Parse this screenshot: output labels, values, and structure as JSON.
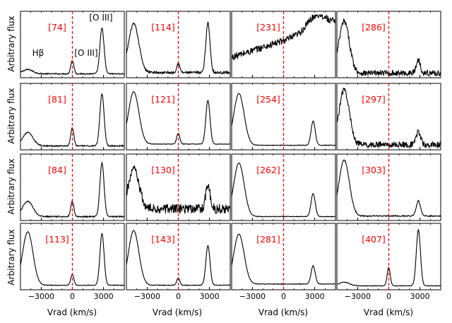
{
  "figure": {
    "ylabel": "Arbitrary flux",
    "xlabel": "Vrad (km/s)",
    "xtick_labels": [
      "−3000",
      "0",
      "3000"
    ],
    "marker_color": "#ff0000",
    "line_color": "#000000"
  },
  "annotations": {
    "hbeta": "Hβ",
    "oiii_weak": "[O III]",
    "oiii_strong": "[O III]"
  },
  "chart_data": {
    "type": "line",
    "x_unit": "Vrad (km/s)",
    "xlim": [
      -5000,
      5000
    ],
    "xticks": [
      -3000,
      0,
      3000
    ],
    "reference_line": {
      "x": 0,
      "style": "dashed",
      "color": "#ff0000"
    },
    "panels": [
      {
        "id": "[74]",
        "row": 0,
        "col": 0,
        "hb": 0.07,
        "o1": 0.22,
        "o2": 0.75,
        "noise": 0.01,
        "base": 0.03
      },
      {
        "id": "[114]",
        "row": 0,
        "col": 1,
        "hb": 0.8,
        "o1": 0.15,
        "o2": 0.82,
        "noise": 0.02,
        "base": 0.05
      },
      {
        "id": "[231]",
        "row": 0,
        "col": 2,
        "hb": 0.0,
        "o1": 0.0,
        "o2": 0.0,
        "noise": 0.06,
        "base": 0.05,
        "rising": true
      },
      {
        "id": "[286]",
        "row": 0,
        "col": 3,
        "hb": 0.85,
        "o1": 0.0,
        "o2": 0.22,
        "noise": 0.05,
        "base": 0.04
      },
      {
        "id": "[81]",
        "row": 1,
        "col": 0,
        "hb": 0.22,
        "o1": 0.3,
        "o2": 0.86,
        "noise": 0.01,
        "base": 0.03
      },
      {
        "id": "[121]",
        "row": 1,
        "col": 1,
        "hb": 0.86,
        "o1": 0.18,
        "o2": 0.72,
        "noise": 0.005,
        "base": 0.06
      },
      {
        "id": "[254]",
        "row": 1,
        "col": 2,
        "hb": 0.85,
        "o1": 0.0,
        "o2": 0.4,
        "noise": 0.005,
        "base": 0.04
      },
      {
        "id": "[297]",
        "row": 1,
        "col": 3,
        "hb": 0.9,
        "o1": 0.0,
        "o2": 0.22,
        "noise": 0.05,
        "base": 0.05
      },
      {
        "id": "[84]",
        "row": 2,
        "col": 0,
        "hb": 0.25,
        "o1": 0.25,
        "o2": 0.88,
        "noise": 0.01,
        "base": 0.03
      },
      {
        "id": "[130]",
        "row": 2,
        "col": 1,
        "hb": 0.65,
        "o1": 0.0,
        "o2": 0.42,
        "noise": 0.08,
        "base": 0.16
      },
      {
        "id": "[262]",
        "row": 2,
        "col": 2,
        "hb": 0.88,
        "o1": 0.0,
        "o2": 0.38,
        "noise": 0.005,
        "base": 0.03
      },
      {
        "id": "[303]",
        "row": 2,
        "col": 3,
        "hb": 0.92,
        "o1": 0.0,
        "o2": 0.25,
        "noise": 0.01,
        "base": 0.04
      },
      {
        "id": "[113]",
        "row": 3,
        "col": 0,
        "hb": 0.88,
        "o1": 0.18,
        "o2": 0.85,
        "noise": 0.005,
        "base": 0.04
      },
      {
        "id": "[143]",
        "row": 3,
        "col": 1,
        "hb": 0.9,
        "o1": 0.12,
        "o2": 0.65,
        "noise": 0.005,
        "base": 0.04
      },
      {
        "id": "[281]",
        "row": 3,
        "col": 2,
        "hb": 0.82,
        "o1": 0.0,
        "o2": 0.3,
        "noise": 0.005,
        "base": 0.06
      },
      {
        "id": "[407]",
        "row": 3,
        "col": 3,
        "hb": 0.06,
        "o1": 0.3,
        "o2": 0.92,
        "noise": 0.005,
        "base": 0.03
      }
    ]
  }
}
